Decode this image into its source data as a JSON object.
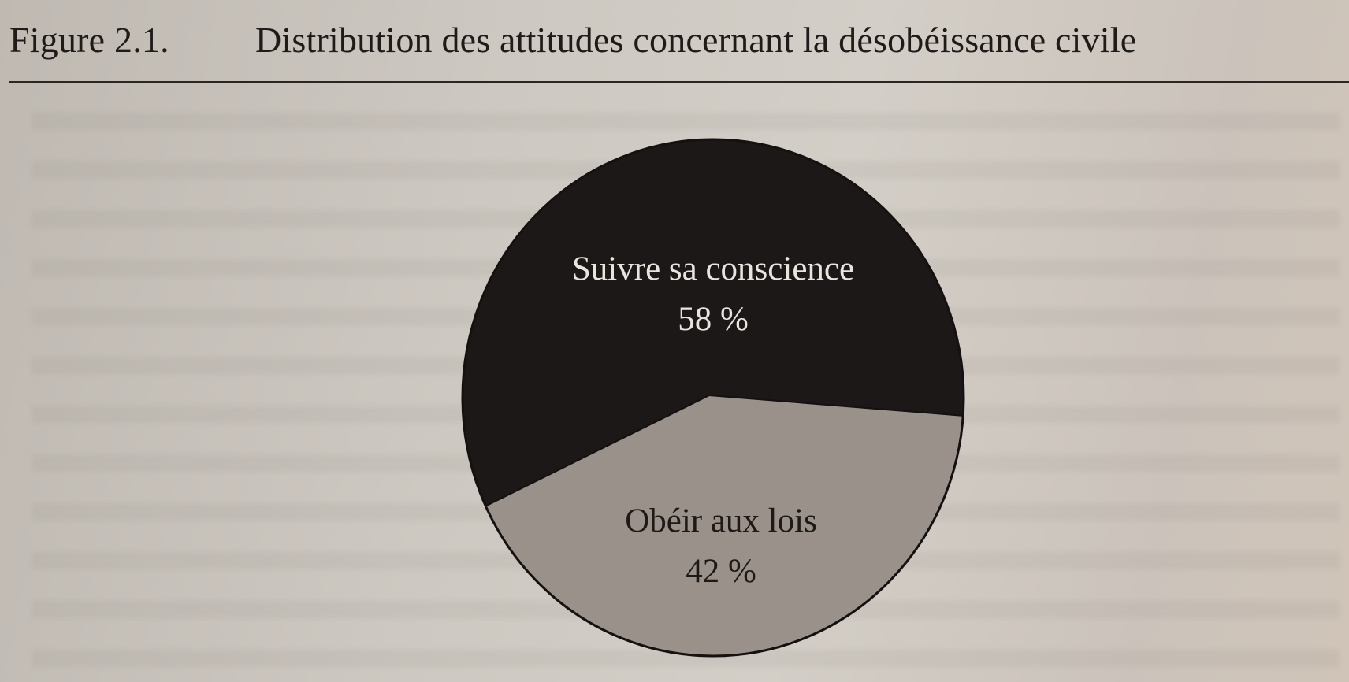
{
  "figure": {
    "number": "Figure 2.1.",
    "title": "Distribution des attitudes concernant la désobéissance civile"
  },
  "chart_data": {
    "type": "pie",
    "title": "Distribution des attitudes concernant la désobéissance civile",
    "slices": [
      {
        "label": "Suivre sa conscience",
        "value": 58,
        "value_label": "58 %",
        "color": "#1b1817",
        "text_color": "#e9e4de"
      },
      {
        "label": "Obéir aux lois",
        "value": 42,
        "value_label": "42 %",
        "color": "#9a928a",
        "text_color": "#1c1917"
      }
    ]
  }
}
